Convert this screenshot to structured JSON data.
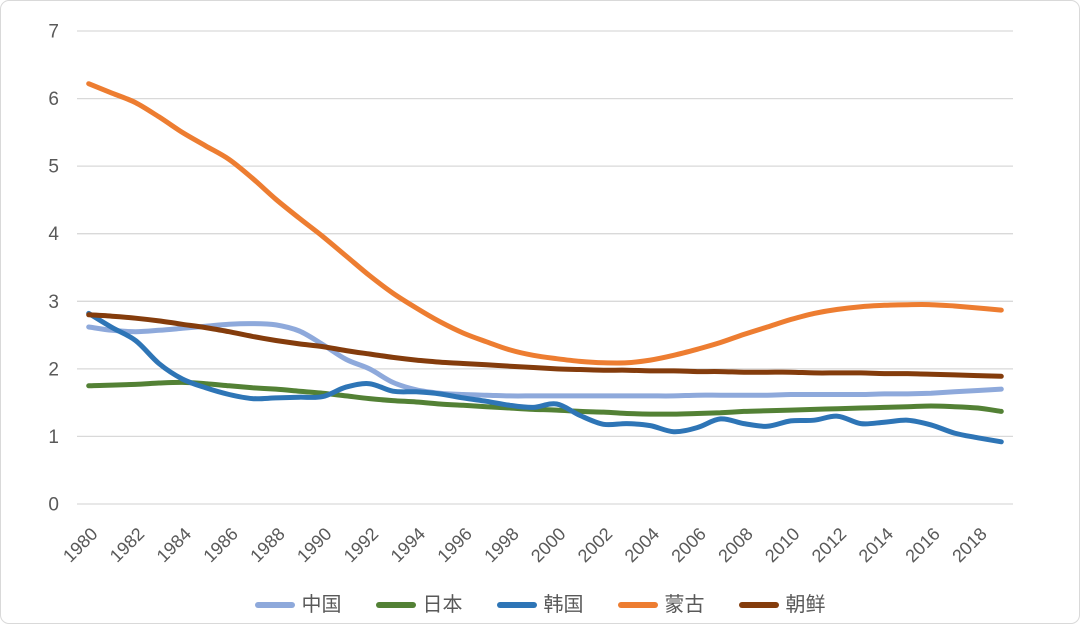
{
  "chart_data": {
    "type": "line",
    "title": "",
    "xlabel": "",
    "ylabel": "",
    "x": [
      1980,
      1981,
      1982,
      1983,
      1984,
      1985,
      1986,
      1987,
      1988,
      1989,
      1990,
      1991,
      1992,
      1993,
      1994,
      1995,
      1996,
      1997,
      1998,
      1999,
      2000,
      2001,
      2002,
      2003,
      2004,
      2005,
      2006,
      2007,
      2008,
      2009,
      2010,
      2011,
      2012,
      2013,
      2014,
      2015,
      2016,
      2017,
      2018,
      2019
    ],
    "x_tick_labels": [
      "1980",
      "1982",
      "1984",
      "1986",
      "1988",
      "1990",
      "1992",
      "1994",
      "1996",
      "1998",
      "2000",
      "2002",
      "2004",
      "2006",
      "2008",
      "2010",
      "2012",
      "2014",
      "2016",
      "2018"
    ],
    "x_tick_step": 2,
    "y_ticks": [
      0,
      1,
      2,
      3,
      4,
      5,
      6,
      7
    ],
    "ylim": [
      0,
      7
    ],
    "grid": true,
    "gridline_color": "#d9d9d9",
    "axis_label_color": "#595959",
    "legend_position": "bottom",
    "line_style": "smooth",
    "series": [
      {
        "name": "中国",
        "key": "china",
        "color": "#8ea9db",
        "values": [
          2.62,
          2.57,
          2.55,
          2.57,
          2.6,
          2.63,
          2.66,
          2.67,
          2.65,
          2.56,
          2.36,
          2.14,
          2.0,
          1.8,
          1.69,
          1.64,
          1.62,
          1.61,
          1.6,
          1.6,
          1.6,
          1.6,
          1.6,
          1.6,
          1.6,
          1.6,
          1.61,
          1.61,
          1.61,
          1.61,
          1.62,
          1.62,
          1.62,
          1.62,
          1.63,
          1.63,
          1.64,
          1.66,
          1.68,
          1.7
        ]
      },
      {
        "name": "日本",
        "key": "japan",
        "color": "#538135",
        "values": [
          1.75,
          1.76,
          1.77,
          1.79,
          1.8,
          1.78,
          1.75,
          1.72,
          1.7,
          1.67,
          1.64,
          1.6,
          1.56,
          1.53,
          1.51,
          1.48,
          1.46,
          1.44,
          1.42,
          1.4,
          1.39,
          1.37,
          1.36,
          1.34,
          1.33,
          1.33,
          1.34,
          1.35,
          1.37,
          1.38,
          1.39,
          1.4,
          1.41,
          1.42,
          1.43,
          1.44,
          1.45,
          1.44,
          1.42,
          1.37
        ]
      },
      {
        "name": "韩国",
        "key": "south-korea",
        "color": "#2e75b6",
        "values": [
          2.82,
          2.61,
          2.42,
          2.08,
          1.85,
          1.72,
          1.62,
          1.56,
          1.57,
          1.58,
          1.59,
          1.73,
          1.78,
          1.67,
          1.66,
          1.63,
          1.57,
          1.52,
          1.46,
          1.43,
          1.48,
          1.31,
          1.18,
          1.19,
          1.16,
          1.07,
          1.13,
          1.26,
          1.19,
          1.15,
          1.23,
          1.24,
          1.3,
          1.19,
          1.21,
          1.24,
          1.17,
          1.05,
          0.98,
          0.92
        ]
      },
      {
        "name": "蒙古",
        "key": "mongolia",
        "color": "#ed7d31",
        "values": [
          6.22,
          6.08,
          5.94,
          5.73,
          5.5,
          5.3,
          5.1,
          4.82,
          4.51,
          4.23,
          3.96,
          3.67,
          3.38,
          3.12,
          2.9,
          2.7,
          2.53,
          2.4,
          2.28,
          2.2,
          2.15,
          2.11,
          2.09,
          2.09,
          2.13,
          2.2,
          2.29,
          2.39,
          2.51,
          2.62,
          2.73,
          2.82,
          2.88,
          2.92,
          2.94,
          2.95,
          2.95,
          2.93,
          2.9,
          2.87
        ]
      },
      {
        "name": "朝鲜",
        "key": "north-korea",
        "color": "#843c0c",
        "values": [
          2.8,
          2.78,
          2.75,
          2.71,
          2.66,
          2.61,
          2.55,
          2.48,
          2.42,
          2.37,
          2.33,
          2.27,
          2.22,
          2.17,
          2.13,
          2.1,
          2.08,
          2.06,
          2.04,
          2.02,
          2.0,
          1.99,
          1.98,
          1.98,
          1.97,
          1.97,
          1.96,
          1.96,
          1.95,
          1.95,
          1.95,
          1.94,
          1.94,
          1.94,
          1.93,
          1.93,
          1.92,
          1.91,
          1.9,
          1.89
        ]
      }
    ]
  }
}
